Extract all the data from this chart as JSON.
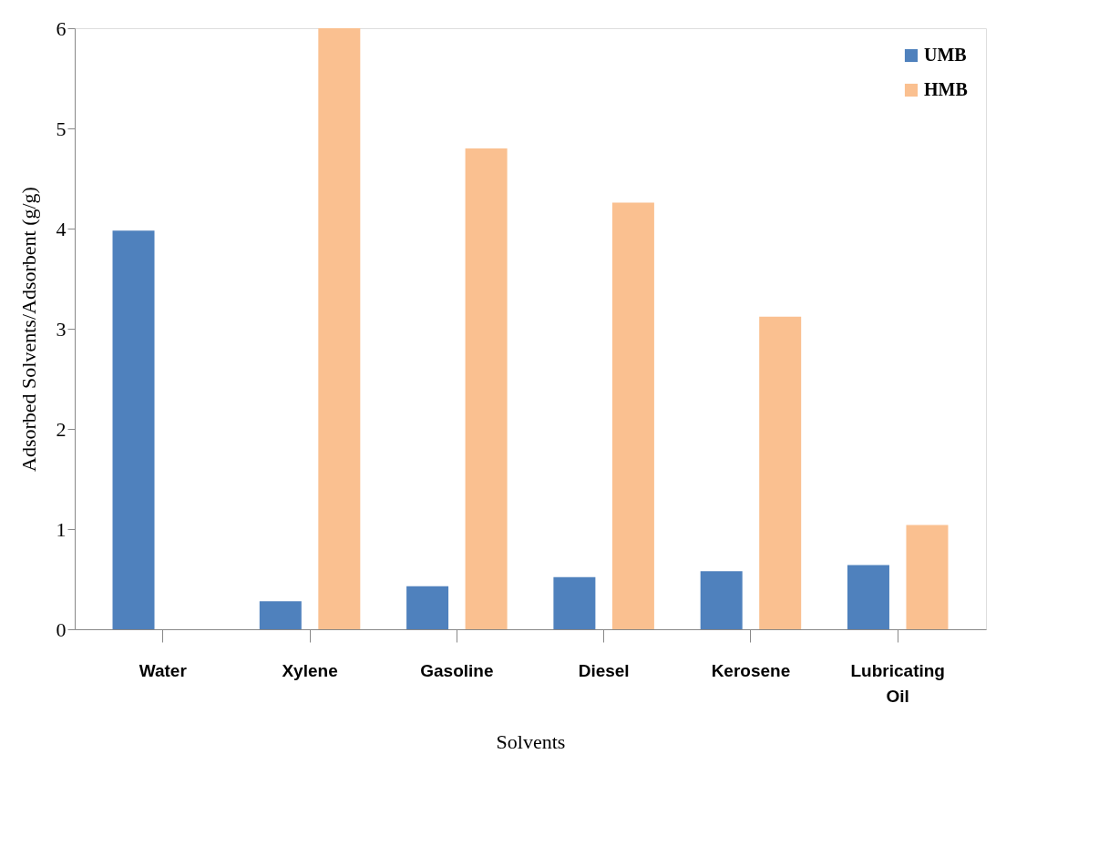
{
  "chart_data": {
    "type": "bar",
    "xlabel": "Solvents",
    "ylabel": "Adsorbed Solvents/Adsorbent (g/g)",
    "categories": [
      "Water",
      "Xylene",
      "Gasoline",
      "Diesel",
      "Kerosene",
      "Lubricating Oil"
    ],
    "series": [
      {
        "name": "UMB",
        "color": "#4f81bd",
        "values": [
          3.98,
          0.28,
          0.43,
          0.52,
          0.58,
          0.64
        ]
      },
      {
        "name": "HMB",
        "color": "#fac090",
        "values": [
          0,
          6.0,
          4.8,
          4.26,
          3.12,
          1.04
        ]
      }
    ],
    "ylim": [
      0,
      6
    ],
    "yticks": [
      0,
      1,
      2,
      3,
      4,
      5,
      6
    ],
    "grid": false,
    "legend": "top right"
  }
}
